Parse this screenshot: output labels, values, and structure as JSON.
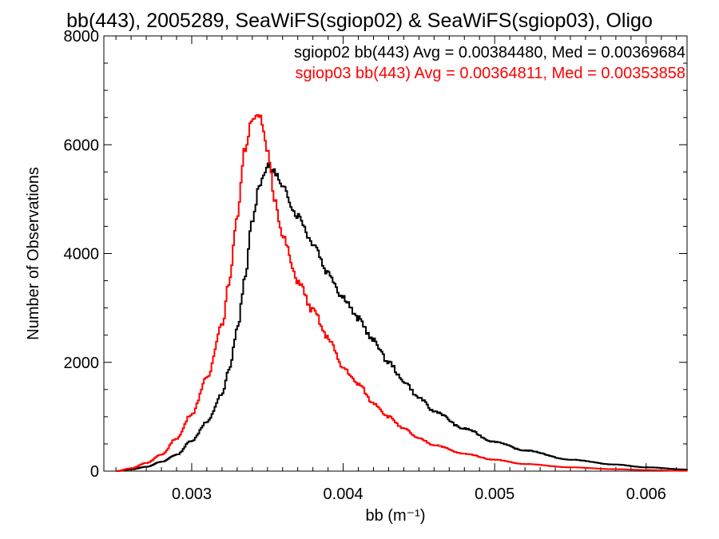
{
  "chart_data": {
    "type": "line",
    "title": "bb(443), 2005289, SeaWiFS(sgiop02) & SeaWiFS(sgiop03), Oligo",
    "xlabel": "bb (m⁻¹)",
    "ylabel": "Number of Observations",
    "xlim": [
      0.00242,
      0.00627
    ],
    "ylim": [
      0,
      8000
    ],
    "x_ticks": [
      {
        "value": 0.003,
        "label": "0.003"
      },
      {
        "value": 0.004,
        "label": "0.004"
      },
      {
        "value": 0.005,
        "label": "0.005"
      },
      {
        "value": 0.006,
        "label": "0.006"
      }
    ],
    "y_ticks": [
      {
        "value": 0,
        "label": "0"
      },
      {
        "value": 2000,
        "label": "2000"
      },
      {
        "value": 4000,
        "label": "4000"
      },
      {
        "value": 6000,
        "label": "6000"
      },
      {
        "value": 8000,
        "label": "8000"
      }
    ],
    "legend_position": "top-right",
    "x": [
      0.0025,
      0.0026,
      0.0027,
      0.0028,
      0.0029,
      0.003,
      0.0031,
      0.0032,
      0.00325,
      0.0033,
      0.00335,
      0.0034,
      0.00345,
      0.0035,
      0.00355,
      0.0036,
      0.0037,
      0.0038,
      0.0039,
      0.004,
      0.0041,
      0.0042,
      0.0043,
      0.0044,
      0.0045,
      0.0046,
      0.0048,
      0.005,
      0.0052,
      0.0055,
      0.0058,
      0.006,
      0.00627
    ],
    "series": [
      {
        "name": "sgiop02",
        "legend": "sgiop02 bb(443) Avg = 0.00384480, Med = 0.00369684",
        "color": "#000000",
        "values": [
          0,
          30,
          80,
          170,
          300,
          560,
          900,
          1400,
          1900,
          2600,
          3500,
          4600,
          5300,
          5600,
          5500,
          5200,
          4700,
          4200,
          3650,
          3200,
          2800,
          2400,
          2000,
          1650,
          1350,
          1100,
          780,
          540,
          380,
          210,
          120,
          70,
          30
        ]
      },
      {
        "name": "sgiop03",
        "legend": "sgiop03 bb(443) Avg = 0.00364811, Med = 0.00353858",
        "color": "#ff0000",
        "values": [
          0,
          50,
          150,
          300,
          600,
          1050,
          1700,
          2700,
          3500,
          4700,
          5900,
          6500,
          6500,
          5900,
          5000,
          4300,
          3500,
          2950,
          2450,
          1900,
          1600,
          1250,
          1000,
          780,
          600,
          480,
          320,
          210,
          130,
          70,
          35,
          20,
          5
        ]
      }
    ]
  }
}
